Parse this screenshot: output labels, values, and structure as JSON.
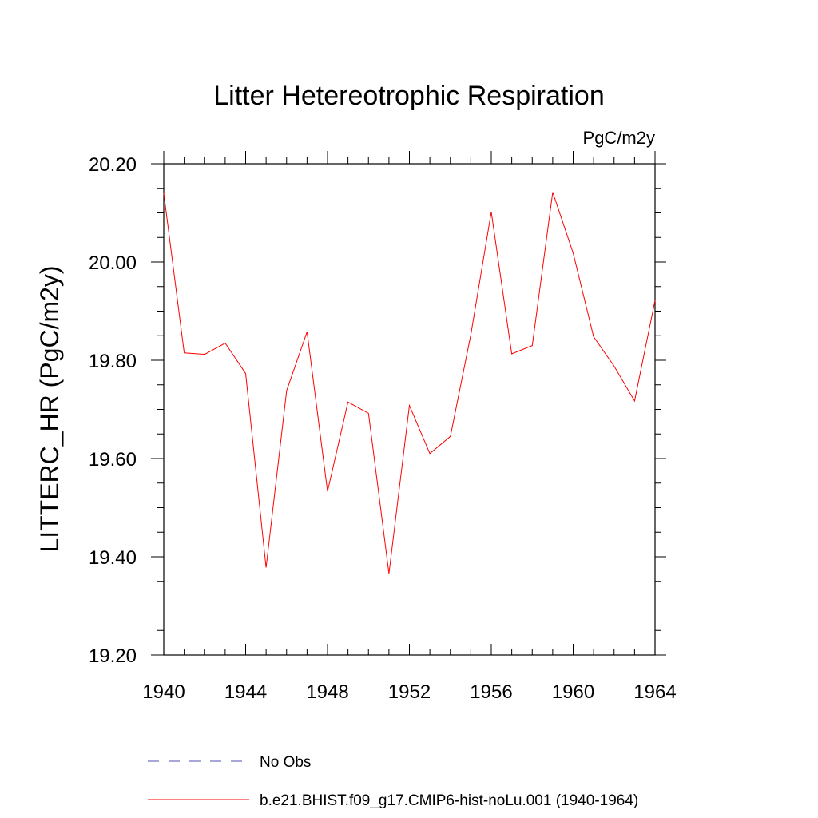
{
  "chart_data": {
    "type": "line",
    "title": "Litter Hetereotrophic Respiration",
    "units_label": "PgC/m2y",
    "ylabel": "LITTERC_HR  (PgC/m2y)",
    "xlabel": "",
    "xlim": [
      1940,
      1964
    ],
    "ylim": [
      19.2,
      20.2
    ],
    "x_ticks": [
      1940,
      1944,
      1948,
      1952,
      1956,
      1960,
      1964
    ],
    "x_tick_labels": [
      "1940",
      "1944",
      "1948",
      "1952",
      "1956",
      "1960",
      "1964"
    ],
    "y_ticks": [
      19.2,
      19.4,
      19.6,
      19.8,
      20.0,
      20.2
    ],
    "y_tick_labels": [
      "19.20",
      "19.40",
      "19.60",
      "19.80",
      "20.00",
      "20.20"
    ],
    "grid": false,
    "series": [
      {
        "name": "b.e21.BHIST.f09_g17.CMIP6-hist-noLu.001 (1940-1964)",
        "color": "#ff0000",
        "style": "solid",
        "x": [
          1940,
          1941,
          1942,
          1943,
          1944,
          1945,
          1946,
          1947,
          1948,
          1949,
          1950,
          1951,
          1952,
          1953,
          1954,
          1955,
          1956,
          1957,
          1958,
          1959,
          1960,
          1961,
          1962,
          1963,
          1964
        ],
        "y": [
          20.14,
          19.815,
          19.812,
          19.835,
          19.773,
          19.378,
          19.738,
          19.858,
          19.533,
          19.715,
          19.692,
          19.366,
          19.708,
          19.61,
          19.645,
          19.852,
          20.102,
          19.813,
          19.83,
          20.142,
          20.018,
          19.848,
          19.788,
          19.717,
          19.922
        ]
      }
    ],
    "legend": [
      {
        "label": "No Obs",
        "color": "#5050b0",
        "style": "dashed"
      },
      {
        "label": "b.e21.BHIST.f09_g17.CMIP6-hist-noLu.001 (1940-1964)",
        "color": "#ff0000",
        "style": "solid"
      }
    ],
    "legend_position": "bottom"
  }
}
